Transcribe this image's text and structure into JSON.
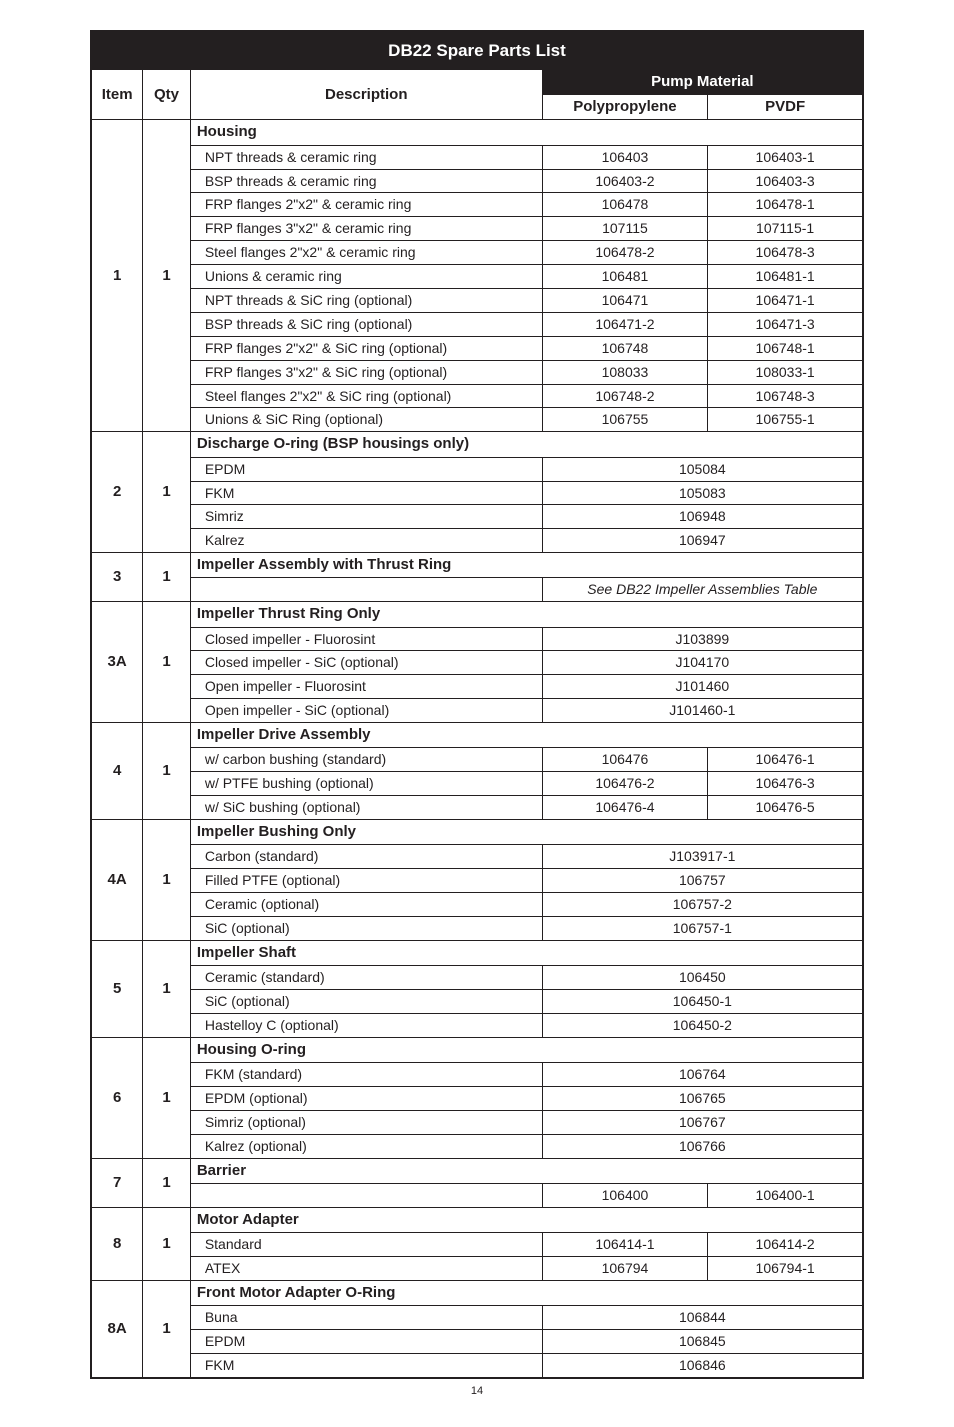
{
  "page_number": "14",
  "table": {
    "title": "DB22 Spare Parts List",
    "columns": {
      "item": "Item",
      "qty": "Qty",
      "description": "Description",
      "pump_material": "Pump Material",
      "polypropylene": "Polypropylene",
      "pvdf": "PVDF"
    },
    "groups": [
      {
        "item": "1",
        "qty": "1",
        "header": "Housing",
        "rows": [
          {
            "desc": "NPT threads & ceramic ring",
            "pp": "106403",
            "pv": "106403-1"
          },
          {
            "desc": "BSP threads & ceramic ring",
            "pp": "106403-2",
            "pv": "106403-3"
          },
          {
            "desc": "FRP flanges 2\"x2\" & ceramic ring",
            "pp": "106478",
            "pv": "106478-1"
          },
          {
            "desc": "FRP flanges 3\"x2\" & ceramic ring",
            "pp": "107115",
            "pv": "107115-1"
          },
          {
            "desc": "Steel flanges 2\"x2\" & ceramic ring",
            "pp": "106478-2",
            "pv": "106478-3"
          },
          {
            "desc": "Unions & ceramic ring",
            "pp": "106481",
            "pv": "106481-1"
          },
          {
            "desc": "NPT threads & SiC ring (optional)",
            "pp": "106471",
            "pv": "106471-1"
          },
          {
            "desc": "BSP threads & SiC ring (optional)",
            "pp": "106471-2",
            "pv": "106471-3"
          },
          {
            "desc": "FRP flanges 2\"x2\" & SiC ring (optional)",
            "pp": "106748",
            "pv": "106748-1"
          },
          {
            "desc": "FRP flanges 3\"x2\" & SiC ring (optional)",
            "pp": "108033",
            "pv": "108033-1"
          },
          {
            "desc": "Steel flanges 2\"x2\" & SiC ring (optional)",
            "pp": "106748-2",
            "pv": "106748-3"
          },
          {
            "desc": "Unions & SiC Ring (optional)",
            "pp": "106755",
            "pv": "106755-1"
          }
        ]
      },
      {
        "item": "2",
        "qty": "1",
        "header": "Discharge O-ring (BSP housings only)",
        "rows": [
          {
            "desc": "EPDM",
            "both": "105084"
          },
          {
            "desc": "FKM",
            "both": "105083"
          },
          {
            "desc": "Simriz",
            "both": "106948"
          },
          {
            "desc": "Kalrez",
            "both": "106947"
          }
        ]
      },
      {
        "item": "3",
        "qty": "1",
        "header": "Impeller Assembly with Thrust Ring",
        "note": "See DB22 Impeller Assemblies Table"
      },
      {
        "item": "3A",
        "qty": "1",
        "header": "Impeller Thrust Ring Only",
        "rows": [
          {
            "desc": "Closed impeller - Fluorosint",
            "both": "J103899"
          },
          {
            "desc": "Closed impeller - SiC (optional)",
            "both": "J104170"
          },
          {
            "desc": "Open impeller - Fluorosint",
            "both": "J101460"
          },
          {
            "desc": "Open impeller - SiC (optional)",
            "both": "J101460-1"
          }
        ]
      },
      {
        "item": "4",
        "qty": "1",
        "header": "Impeller Drive Assembly",
        "rows": [
          {
            "desc": "w/ carbon bushing (standard)",
            "pp": "106476",
            "pv": "106476-1"
          },
          {
            "desc": "w/ PTFE bushing (optional)",
            "pp": "106476-2",
            "pv": "106476-3"
          },
          {
            "desc": "w/ SiC bushing  (optional)",
            "pp": "106476-4",
            "pv": "106476-5"
          }
        ]
      },
      {
        "item": "4A",
        "qty": "1",
        "header": "Impeller Bushing Only",
        "rows": [
          {
            "desc": "Carbon (standard)",
            "both": "J103917-1"
          },
          {
            "desc": "Filled PTFE (optional)",
            "both": "106757"
          },
          {
            "desc": "Ceramic (optional)",
            "both": "106757-2"
          },
          {
            "desc": "SiC (optional)",
            "both": "106757-1"
          }
        ]
      },
      {
        "item": "5",
        "qty": "1",
        "header": "Impeller Shaft",
        "rows": [
          {
            "desc": "Ceramic (standard)",
            "both": "106450"
          },
          {
            "desc": "SiC (optional)",
            "both": "106450-1"
          },
          {
            "desc": "Hastelloy C (optional)",
            "both": "106450-2"
          }
        ]
      },
      {
        "item": "6",
        "qty": "1",
        "header": "Housing O-ring",
        "rows": [
          {
            "desc": "FKM (standard)",
            "both": "106764"
          },
          {
            "desc": "EPDM (optional)",
            "both": "106765"
          },
          {
            "desc": "Simriz (optional)",
            "both": "106767"
          },
          {
            "desc": "Kalrez (optional)",
            "both": "106766"
          }
        ]
      },
      {
        "item": "7",
        "qty": "1",
        "header": "Barrier",
        "rows": [
          {
            "desc": "",
            "pp": "106400",
            "pv": "106400-1"
          }
        ]
      },
      {
        "item": "8",
        "qty": "1",
        "header": "Motor Adapter",
        "rows": [
          {
            "desc": "Standard",
            "pp": "106414-1",
            "pv": "106414-2"
          },
          {
            "desc": "ATEX",
            "pp": "106794",
            "pv": "106794-1"
          }
        ]
      },
      {
        "item": "8A",
        "qty": "1",
        "header": "Front Motor Adapter O-Ring",
        "rows": [
          {
            "desc": "Buna",
            "both": "106844"
          },
          {
            "desc": "EPDM",
            "both": "106845"
          },
          {
            "desc": "FKM",
            "both": "106846"
          }
        ]
      }
    ]
  }
}
